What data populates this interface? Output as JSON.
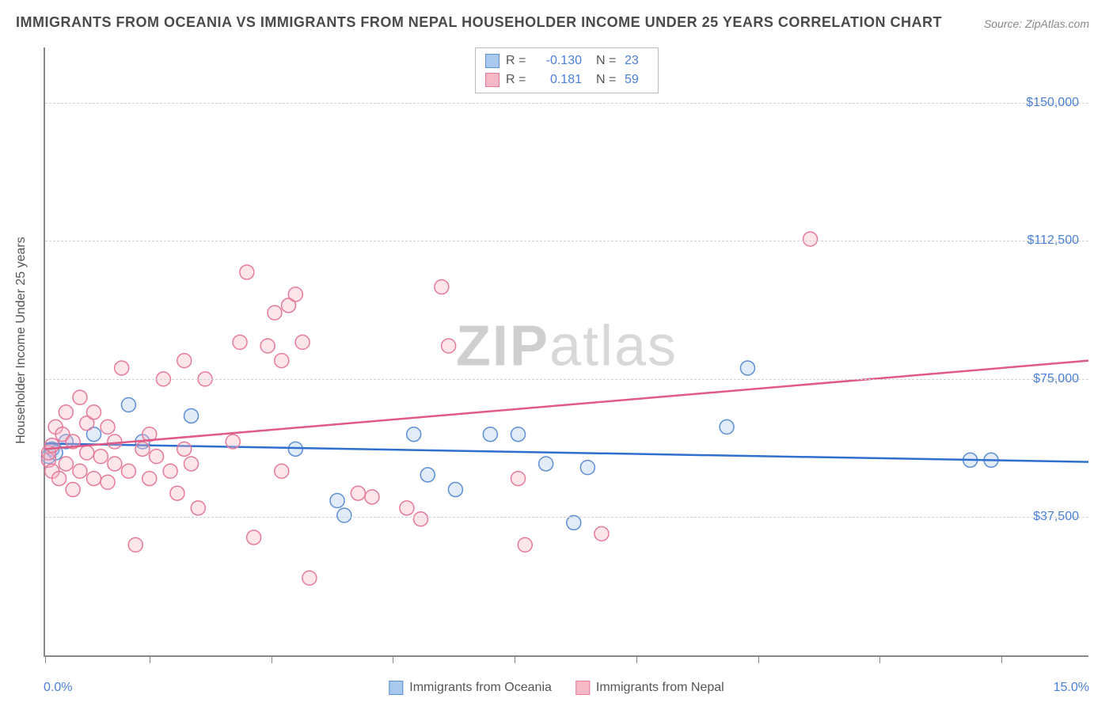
{
  "title": "IMMIGRANTS FROM OCEANIA VS IMMIGRANTS FROM NEPAL HOUSEHOLDER INCOME UNDER 25 YEARS CORRELATION CHART",
  "source_label": "Source:",
  "source_name": "ZipAtlas.com",
  "y_axis_title": "Householder Income Under 25 years",
  "watermark_bold": "ZIP",
  "watermark_light": "atlas",
  "chart": {
    "type": "scatter",
    "xlim": [
      0,
      15
    ],
    "ylim": [
      0,
      165000
    ],
    "x_min_label": "0.0%",
    "x_max_label": "15.0%",
    "x_ticks": [
      0,
      1.5,
      3.25,
      5,
      6.75,
      8.5,
      10.25,
      12,
      13.75
    ],
    "y_gridlines": [
      {
        "value": 37500,
        "label": "$37,500"
      },
      {
        "value": 75000,
        "label": "$75,000"
      },
      {
        "value": 112500,
        "label": "$112,500"
      },
      {
        "value": 150000,
        "label": "$150,000"
      }
    ],
    "background_color": "#ffffff",
    "grid_color": "#d0d0d0",
    "axis_color": "#888888",
    "label_color": "#4a7fd8",
    "marker_radius": 9,
    "series": [
      {
        "name": "Immigrants from Oceania",
        "color_fill": "#a8c8ec",
        "color_stroke": "#5b8fd6",
        "R": "-0.130",
        "N": "23",
        "trend": {
          "y_at_xmin": 57500,
          "y_at_xmax": 52500,
          "stroke": "#2f6fd0",
          "width": 2.5
        },
        "points": [
          [
            0.05,
            54000
          ],
          [
            0.1,
            56000
          ],
          [
            0.15,
            55000
          ],
          [
            0.3,
            58000
          ],
          [
            0.7,
            60000
          ],
          [
            1.2,
            68000
          ],
          [
            1.4,
            58000
          ],
          [
            2.1,
            65000
          ],
          [
            3.6,
            56000
          ],
          [
            4.2,
            42000
          ],
          [
            4.3,
            38000
          ],
          [
            5.3,
            60000
          ],
          [
            5.5,
            49000
          ],
          [
            5.9,
            45000
          ],
          [
            6.4,
            60000
          ],
          [
            6.8,
            60000
          ],
          [
            7.2,
            52000
          ],
          [
            7.6,
            36000
          ],
          [
            7.8,
            51000
          ],
          [
            9.8,
            62000
          ],
          [
            10.1,
            78000
          ],
          [
            13.3,
            53000
          ],
          [
            13.6,
            53000
          ]
        ]
      },
      {
        "name": "Immigrants from Nepal",
        "color_fill": "#f5b8c7",
        "color_stroke": "#e77a98",
        "R": "0.181",
        "N": "59",
        "trend": {
          "y_at_xmin": 56000,
          "y_at_xmax": 80000,
          "stroke": "#e05a85",
          "width": 2.5
        },
        "points": [
          [
            0.05,
            53000
          ],
          [
            0.05,
            55000
          ],
          [
            0.1,
            50000
          ],
          [
            0.1,
            57000
          ],
          [
            0.15,
            62000
          ],
          [
            0.2,
            48000
          ],
          [
            0.25,
            60000
          ],
          [
            0.3,
            52000
          ],
          [
            0.3,
            66000
          ],
          [
            0.4,
            45000
          ],
          [
            0.4,
            58000
          ],
          [
            0.5,
            70000
          ],
          [
            0.5,
            50000
          ],
          [
            0.6,
            63000
          ],
          [
            0.6,
            55000
          ],
          [
            0.7,
            48000
          ],
          [
            0.7,
            66000
          ],
          [
            0.8,
            54000
          ],
          [
            0.9,
            62000
          ],
          [
            0.9,
            47000
          ],
          [
            1.0,
            58000
          ],
          [
            1.0,
            52000
          ],
          [
            1.1,
            78000
          ],
          [
            1.2,
            50000
          ],
          [
            1.3,
            30000
          ],
          [
            1.4,
            56000
          ],
          [
            1.5,
            48000
          ],
          [
            1.5,
            60000
          ],
          [
            1.6,
            54000
          ],
          [
            1.7,
            75000
          ],
          [
            1.8,
            50000
          ],
          [
            1.9,
            44000
          ],
          [
            2.0,
            80000
          ],
          [
            2.0,
            56000
          ],
          [
            2.1,
            52000
          ],
          [
            2.2,
            40000
          ],
          [
            2.3,
            75000
          ],
          [
            2.7,
            58000
          ],
          [
            2.8,
            85000
          ],
          [
            2.9,
            104000
          ],
          [
            3.0,
            32000
          ],
          [
            3.2,
            84000
          ],
          [
            3.3,
            93000
          ],
          [
            3.4,
            80000
          ],
          [
            3.4,
            50000
          ],
          [
            3.5,
            95000
          ],
          [
            3.6,
            98000
          ],
          [
            3.7,
            85000
          ],
          [
            3.8,
            21000
          ],
          [
            4.5,
            44000
          ],
          [
            4.7,
            43000
          ],
          [
            5.2,
            40000
          ],
          [
            5.4,
            37000
          ],
          [
            5.7,
            100000
          ],
          [
            5.8,
            84000
          ],
          [
            6.8,
            48000
          ],
          [
            6.9,
            30000
          ],
          [
            8.0,
            33000
          ],
          [
            11.0,
            113000
          ]
        ]
      }
    ]
  },
  "legend_bottom": [
    {
      "label": "Immigrants from Oceania",
      "fill": "#a8c8ec",
      "stroke": "#5b8fd6"
    },
    {
      "label": "Immigrants from Nepal",
      "fill": "#f5b8c7",
      "stroke": "#e77a98"
    }
  ]
}
